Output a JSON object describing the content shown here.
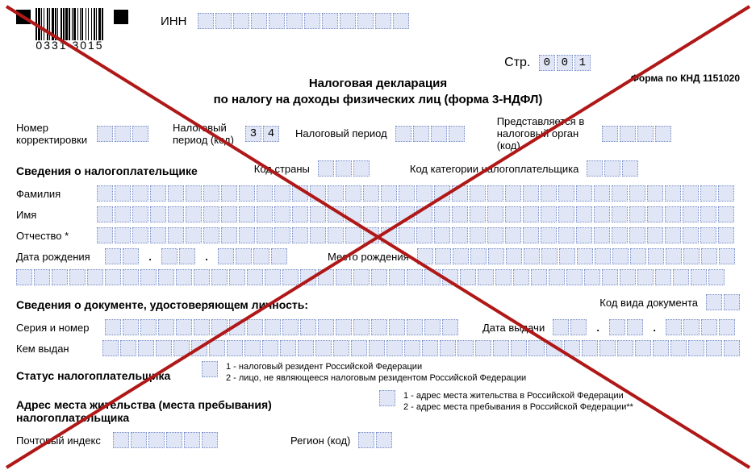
{
  "barcode_number": "0331 3015",
  "inn_label": "ИНН",
  "inn_cells": 12,
  "page_label": "Стр.",
  "page_value": [
    "0",
    "0",
    "1"
  ],
  "title_line1": "Налоговая декларация",
  "title_line2": "по налогу на доходы физических лиц (форма 3-НДФЛ)",
  "form_code": "Форма по КНД 1151020",
  "row_corr": {
    "label": "Номер корректировки",
    "cells": 3,
    "tax_period_code_label": "Налоговый период (код)",
    "tax_period_code_value": [
      "3",
      "4"
    ],
    "tax_period_label": "Налоговый период",
    "tax_period_cells": 4,
    "submitted_label": "Представляется в налоговый орган (код)",
    "submitted_cells": 4
  },
  "taxpayer_section": "Сведения о налогоплательщике",
  "country_code_label": "Код страны",
  "country_code_cells": 3,
  "category_label": "Код категории налогоплательщика",
  "category_cells": 3,
  "surname_label": "Фамилия",
  "surname_cells": 36,
  "name_label": "Имя",
  "name_cells": 36,
  "patronymic_label": "Отчество *",
  "patronymic_cells": 36,
  "dob_label": "Дата рождения",
  "pob_label": "Место рождения",
  "pob_cells": 18,
  "pob_cells2": 40,
  "doc_section": "Сведения о документе, удостоверяющем личность:",
  "doc_type_label": "Код вида документа",
  "doc_type_cells": 2,
  "series_label": "Серия и номер",
  "series_cells": 20,
  "issue_date_label": "Дата выдачи",
  "issued_by_label": "Кем выдан",
  "issued_by_cells": 36,
  "status_section": "Статус налогоплательщика",
  "status_cells": 1,
  "status_note1": "1 - налоговый резидент Российской Федерации",
  "status_note2": "2 - лицо, не являющееся налоговым резидентом Российской Федерации",
  "address_section": "Адрес места жительства (места пребывания) налогоплательщика",
  "address_cells": 1,
  "address_note1": "1 - адрес места жительства в Российской Федерации",
  "address_note2": "2 - адрес места пребывания в Российской Федерации**",
  "postcode_label": "Почтовый индекс",
  "postcode_cells": 6,
  "region_label": "Регион (код)",
  "region_cells": 2,
  "colors": {
    "cell_bg": "#e0e6f5",
    "cell_border": "#7a8fc9",
    "cross": "#b01818"
  },
  "barcode_widths": [
    2,
    1,
    3,
    1,
    1,
    2,
    1,
    3,
    2,
    1,
    1,
    2,
    3,
    1,
    2,
    1,
    1,
    3,
    2,
    1,
    2,
    1,
    3,
    1,
    2,
    2,
    1,
    1,
    3,
    2,
    1,
    2,
    1,
    1,
    2,
    3,
    1,
    2,
    1,
    3,
    1,
    2,
    2,
    1,
    1,
    2,
    3,
    1,
    2,
    1
  ]
}
